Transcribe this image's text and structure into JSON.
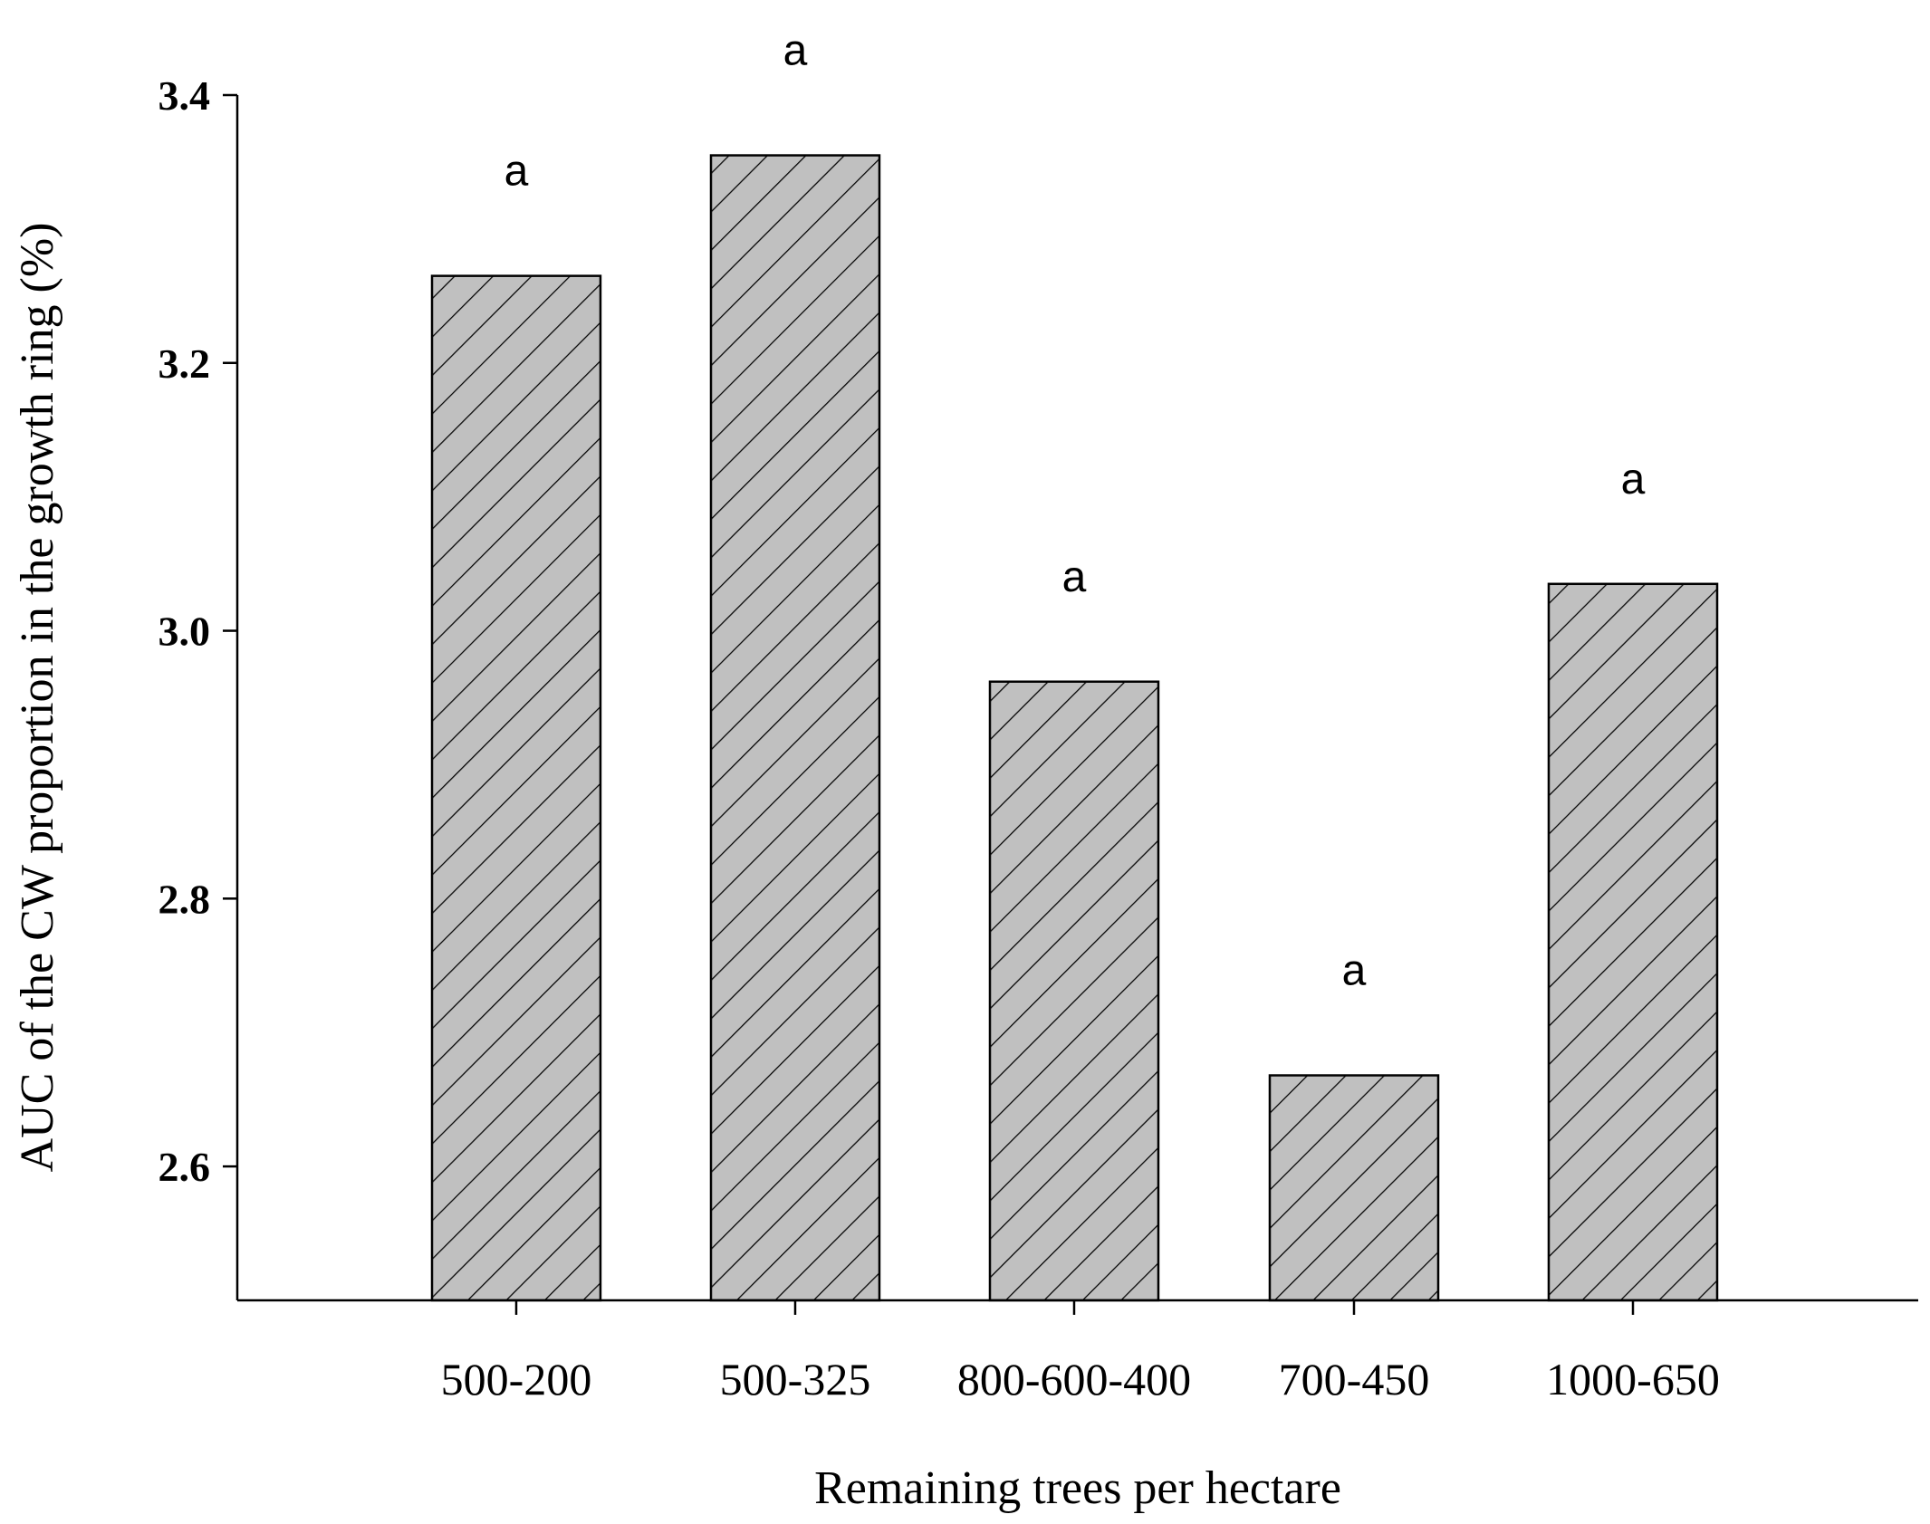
{
  "chart_data": {
    "type": "bar",
    "title": "",
    "xlabel": "Remaining trees per hectare",
    "ylabel": "AUC of the CW proportion in the growth ring (%)",
    "categories": [
      "500-200",
      "500-325",
      "800-600-400",
      "700-450",
      "1000-650"
    ],
    "values": [
      3.265,
      3.355,
      2.962,
      2.668,
      3.035
    ],
    "significance_letters": [
      "a",
      "a",
      "a",
      "a",
      "a"
    ],
    "ylim": [
      2.5,
      3.4
    ],
    "yticks": [
      "2.6",
      "2.8",
      "3.0",
      "3.2",
      "3.4"
    ],
    "grid": false,
    "legend": "none",
    "bar_fill": "#c0c0c0",
    "bar_pattern": "diagonal-hatch"
  }
}
